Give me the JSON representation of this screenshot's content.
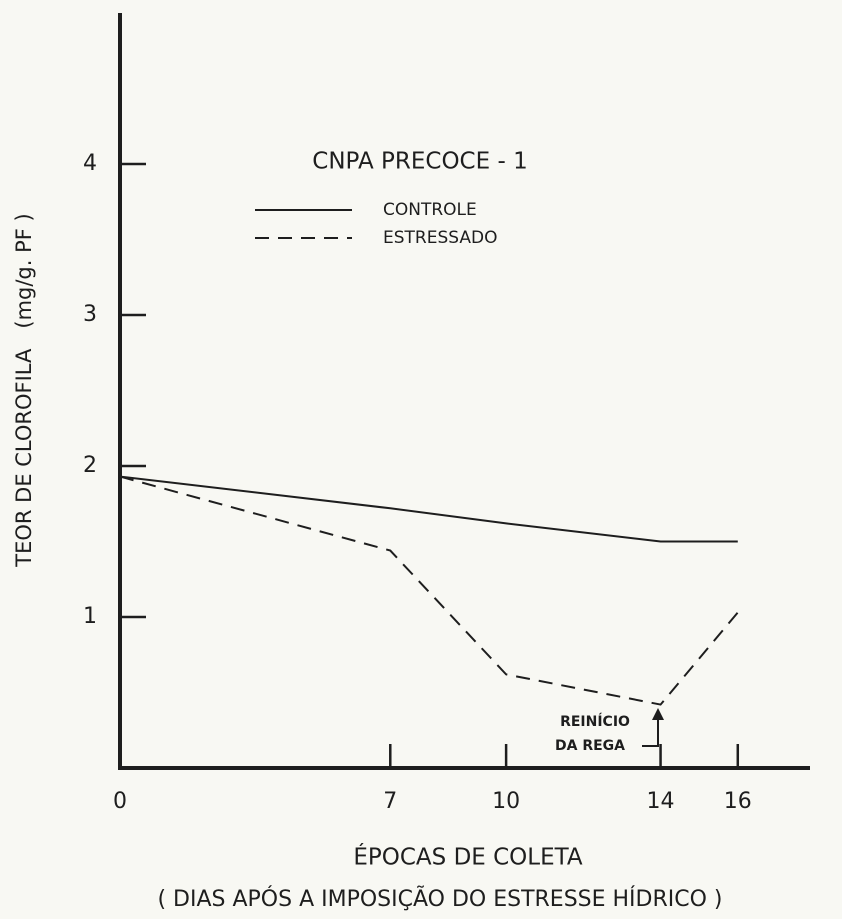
{
  "chart_data": {
    "type": "line",
    "title": "CNPA PRECOCE - 1",
    "xlabel": "ÉPOCAS DE COLETA",
    "subtitle": "( DIAS APÓS A IMPOSIÇÃO DO ESTRESSE HÍDRICO )",
    "ylabel": "TEOR DE CLOROFILA   (mg/g. PF )",
    "x": [
      0,
      7,
      10,
      14,
      16
    ],
    "series": [
      {
        "name": "CONTROLE",
        "color": "#1e1e1e",
        "linestyle": "solid",
        "values": [
          1.93,
          1.72,
          1.62,
          1.5,
          1.5
        ]
      },
      {
        "name": "ESTRESSADO",
        "color": "#1e1e1e",
        "linestyle": "dashed",
        "values": [
          1.93,
          1.44,
          0.62,
          0.42,
          1.03
        ]
      }
    ],
    "annotation": [
      "REINÍCIO",
      "DA REGA"
    ],
    "xlim": [
      0,
      18
    ],
    "xticks": [
      0,
      7,
      10,
      14,
      16
    ],
    "ylim": [
      0,
      5
    ],
    "yticks": [
      1,
      2,
      3,
      4
    ],
    "grid": false
  }
}
